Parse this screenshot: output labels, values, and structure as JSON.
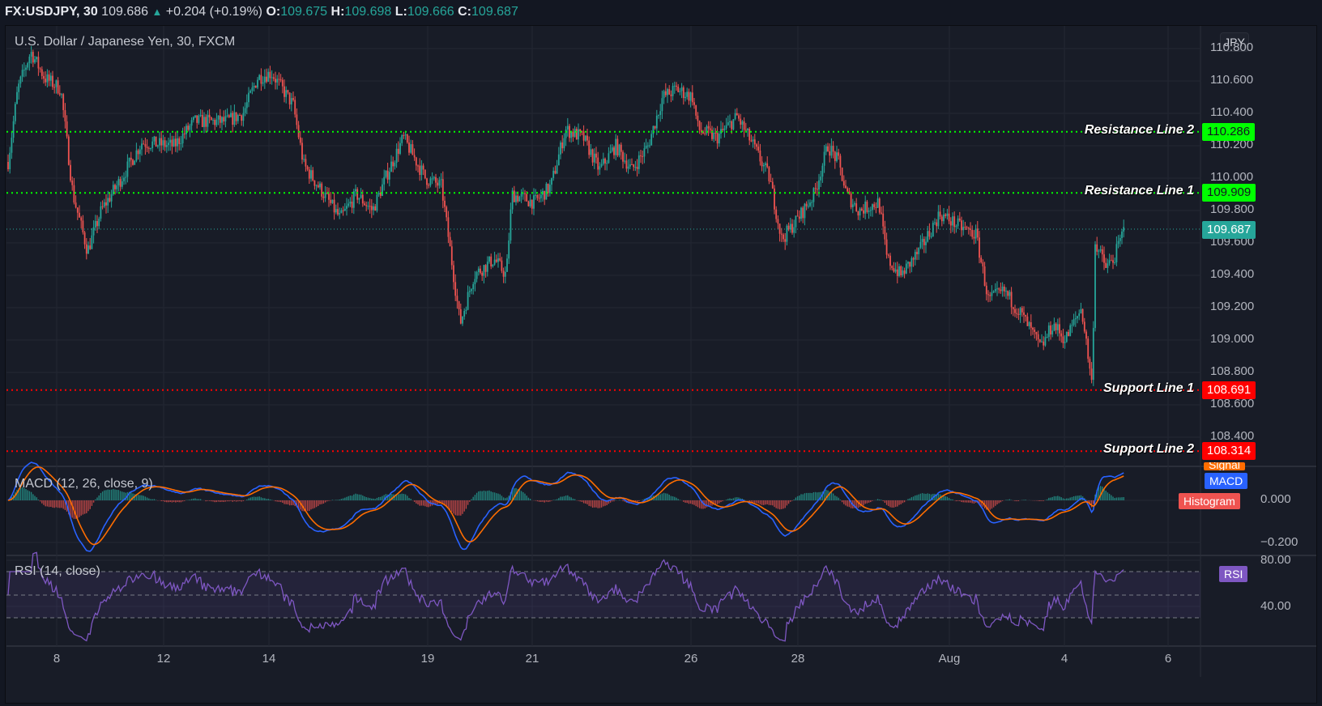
{
  "header": {
    "symbol": "FX:USDJPY, 30",
    "last": "109.686",
    "arrow": "▲",
    "change": "+0.204 (+0.19%)",
    "o_label": "O:",
    "o": "109.675",
    "h_label": "H:",
    "h": "109.698",
    "l_label": "L:",
    "l": "109.666",
    "c_label": "C:",
    "c": "109.687"
  },
  "main_pane": {
    "title": "U.S. Dollar / Japanese Yen, 30, FXCM",
    "currency_button": "JPY",
    "price_ticks": [
      "110.800",
      "110.600",
      "110.400",
      "110.200",
      "110.000",
      "109.800",
      "109.600",
      "109.400",
      "109.200",
      "109.000",
      "108.800",
      "108.600",
      "108.400"
    ],
    "current_price_badge": "109.687",
    "lines": [
      {
        "label": "Resistance Line 2",
        "price": "110.286",
        "color": "#00ff00"
      },
      {
        "label": "Resistance Line 1",
        "price": "109.909",
        "color": "#00ff00"
      },
      {
        "label": "Support Line 1",
        "price": "108.691",
        "color": "#ff0000"
      },
      {
        "label": "Support Line 2",
        "price": "108.314",
        "color": "#ff0000"
      }
    ]
  },
  "macd_pane": {
    "title": "MACD (12, 26, close, 9)",
    "ticks": [
      "0.000",
      "−0.200"
    ],
    "legend": {
      "signal": "Signal",
      "macd": "MACD",
      "histogram": "Histogram"
    }
  },
  "rsi_pane": {
    "title": "RSI (14, close)",
    "ticks": [
      "80.00",
      "40.00"
    ],
    "legend": "RSI"
  },
  "time_axis": {
    "labels": [
      {
        "text": "8",
        "x": 70
      },
      {
        "text": "12",
        "x": 202
      },
      {
        "text": "14",
        "x": 332
      },
      {
        "text": "19",
        "x": 528
      },
      {
        "text": "21",
        "x": 657
      },
      {
        "text": "26",
        "x": 853
      },
      {
        "text": "28",
        "x": 985
      },
      {
        "text": "Aug",
        "x": 1172
      },
      {
        "text": "4",
        "x": 1314
      },
      {
        "text": "6",
        "x": 1442
      }
    ]
  },
  "colors": {
    "up": "#26a69a",
    "down": "#ef5350",
    "macd": "#2962ff",
    "signal": "#ff6d00",
    "rsi": "#7e57c2",
    "resistance": "#00ff00",
    "support": "#ff0000"
  },
  "chart_data": {
    "type": "candlestick",
    "title": "U.S. Dollar / Japanese Yen, 30, FXCM",
    "symbol": "FX:USDJPY",
    "interval": "30",
    "ohlc_last": {
      "open": 109.675,
      "high": 109.698,
      "low": 109.666,
      "close": 109.687
    },
    "ylim": [
      108.3,
      110.85
    ],
    "x_ticks": [
      "8",
      "12",
      "14",
      "19",
      "21",
      "26",
      "28",
      "Aug",
      "4",
      "6"
    ],
    "price_path": [
      {
        "x": 10,
        "p": 110.1
      },
      {
        "x": 22,
        "p": 110.55
      },
      {
        "x": 38,
        "p": 110.78
      },
      {
        "x": 55,
        "p": 110.62
      },
      {
        "x": 75,
        "p": 110.55
      },
      {
        "x": 90,
        "p": 109.9
      },
      {
        "x": 108,
        "p": 109.55
      },
      {
        "x": 125,
        "p": 109.8
      },
      {
        "x": 150,
        "p": 110.0
      },
      {
        "x": 175,
        "p": 110.22
      },
      {
        "x": 215,
        "p": 110.2
      },
      {
        "x": 240,
        "p": 110.35
      },
      {
        "x": 280,
        "p": 110.35
      },
      {
        "x": 300,
        "p": 110.4
      },
      {
        "x": 318,
        "p": 110.62
      },
      {
        "x": 335,
        "p": 110.65
      },
      {
        "x": 362,
        "p": 110.45
      },
      {
        "x": 375,
        "p": 110.08
      },
      {
        "x": 400,
        "p": 109.9
      },
      {
        "x": 420,
        "p": 109.75
      },
      {
        "x": 440,
        "p": 109.9
      },
      {
        "x": 460,
        "p": 109.8
      },
      {
        "x": 480,
        "p": 110.05
      },
      {
        "x": 498,
        "p": 110.25
      },
      {
        "x": 525,
        "p": 110.0
      },
      {
        "x": 545,
        "p": 109.95
      },
      {
        "x": 560,
        "p": 109.4
      },
      {
        "x": 568,
        "p": 109.1
      },
      {
        "x": 585,
        "p": 109.4
      },
      {
        "x": 610,
        "p": 109.5
      },
      {
        "x": 625,
        "p": 109.4
      },
      {
        "x": 632,
        "p": 109.9
      },
      {
        "x": 660,
        "p": 109.85
      },
      {
        "x": 680,
        "p": 109.95
      },
      {
        "x": 698,
        "p": 110.3
      },
      {
        "x": 720,
        "p": 110.25
      },
      {
        "x": 740,
        "p": 110.05
      },
      {
        "x": 760,
        "p": 110.2
      },
      {
        "x": 780,
        "p": 110.05
      },
      {
        "x": 800,
        "p": 110.2
      },
      {
        "x": 818,
        "p": 110.5
      },
      {
        "x": 835,
        "p": 110.55
      },
      {
        "x": 855,
        "p": 110.5
      },
      {
        "x": 862,
        "p": 110.3
      },
      {
        "x": 885,
        "p": 110.25
      },
      {
        "x": 910,
        "p": 110.38
      },
      {
        "x": 930,
        "p": 110.2
      },
      {
        "x": 950,
        "p": 110.0
      },
      {
        "x": 965,
        "p": 109.62
      },
      {
        "x": 985,
        "p": 109.75
      },
      {
        "x": 1005,
        "p": 109.9
      },
      {
        "x": 1022,
        "p": 110.2
      },
      {
        "x": 1035,
        "p": 110.1
      },
      {
        "x": 1045,
        "p": 109.9
      },
      {
        "x": 1060,
        "p": 109.8
      },
      {
        "x": 1085,
        "p": 109.85
      },
      {
        "x": 1095,
        "p": 109.5
      },
      {
        "x": 1112,
        "p": 109.4
      },
      {
        "x": 1135,
        "p": 109.55
      },
      {
        "x": 1160,
        "p": 109.78
      },
      {
        "x": 1185,
        "p": 109.7
      },
      {
        "x": 1205,
        "p": 109.65
      },
      {
        "x": 1220,
        "p": 109.25
      },
      {
        "x": 1240,
        "p": 109.3
      },
      {
        "x": 1262,
        "p": 109.15
      },
      {
        "x": 1285,
        "p": 108.95
      },
      {
        "x": 1300,
        "p": 109.1
      },
      {
        "x": 1315,
        "p": 109.0
      },
      {
        "x": 1335,
        "p": 109.2
      },
      {
        "x": 1342,
        "p": 108.95
      },
      {
        "x": 1348,
        "p": 108.72
      },
      {
        "x": 1352,
        "p": 109.6
      },
      {
        "x": 1365,
        "p": 109.45
      },
      {
        "x": 1375,
        "p": 109.5
      },
      {
        "x": 1388,
        "p": 109.69
      }
    ],
    "horizontal_lines": [
      {
        "name": "Resistance Line 2",
        "value": 110.286
      },
      {
        "name": "Resistance Line 1",
        "value": 109.909
      },
      {
        "name": "Support Line 1",
        "value": 108.691
      },
      {
        "name": "Support Line 2",
        "value": 108.314
      }
    ],
    "indicators": [
      {
        "name": "MACD (12, 26, close, 9)",
        "ylim": [
          -0.22,
          0.12
        ],
        "ticks": [
          0.0,
          -0.2
        ],
        "series": [
          "MACD",
          "Signal",
          "Histogram"
        ]
      },
      {
        "name": "RSI (14, close)",
        "ylim": [
          20,
          85
        ],
        "ticks": [
          80,
          40
        ],
        "bands": [
          70,
          50,
          30
        ]
      }
    ]
  }
}
